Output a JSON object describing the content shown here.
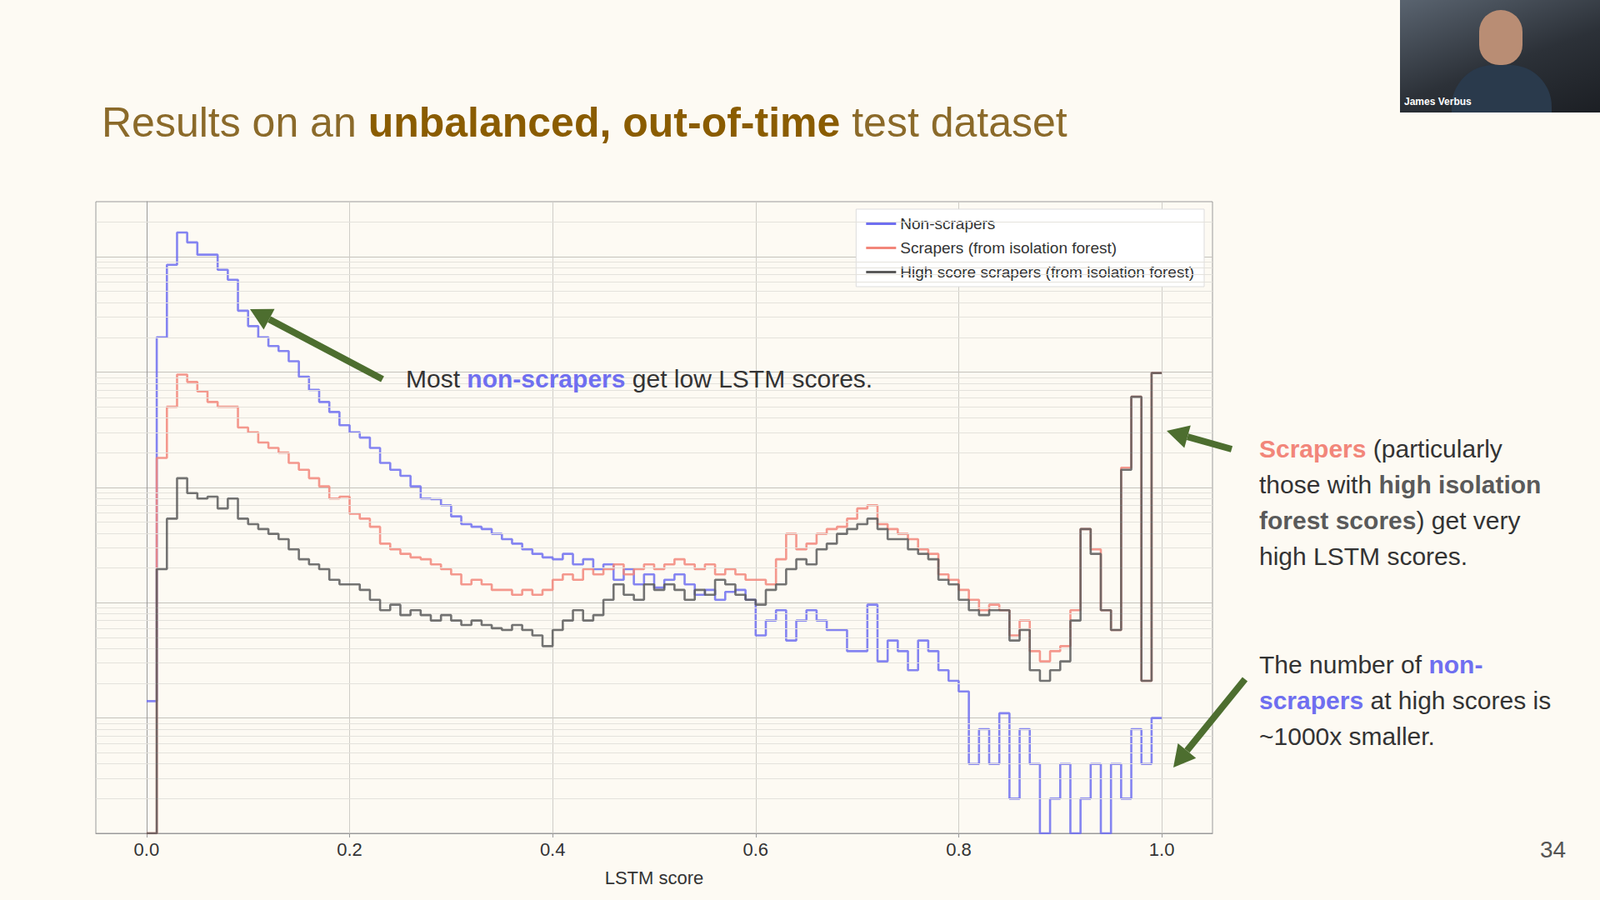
{
  "chart_data": {
    "type": "histogram",
    "title": [
      {
        "text": "Results on an "
      },
      {
        "text": "unbalanced, out-of-time",
        "bold": true
      },
      {
        "text": " test dataset"
      }
    ],
    "x_label": "LSTM score",
    "bins": [
      0,
      0.01,
      0.02,
      0.03,
      0.04,
      0.05,
      0.06,
      0.07,
      0.08,
      0.09,
      0.1,
      0.11,
      0.12,
      0.13,
      0.14,
      0.15,
      0.16,
      0.17,
      0.18,
      0.19,
      0.2,
      0.21,
      0.22,
      0.23,
      0.24,
      0.25,
      0.26,
      0.27,
      0.28,
      0.29,
      0.3,
      0.31,
      0.32,
      0.33,
      0.34,
      0.35,
      0.36,
      0.37,
      0.38,
      0.39,
      0.4,
      0.41,
      0.42,
      0.43,
      0.44,
      0.45,
      0.46,
      0.47,
      0.48,
      0.49,
      0.5,
      0.51,
      0.52,
      0.53,
      0.54,
      0.55,
      0.56,
      0.57,
      0.58,
      0.59,
      0.6,
      0.61,
      0.62,
      0.63,
      0.64,
      0.65,
      0.66,
      0.67,
      0.68,
      0.69,
      0.7,
      0.71,
      0.72,
      0.73,
      0.74,
      0.75,
      0.76,
      0.77,
      0.78,
      0.79,
      0.8,
      0.81,
      0.82,
      0.83,
      0.84,
      0.85,
      0.86,
      0.87,
      0.88,
      0.89,
      0.9,
      0.91,
      0.92,
      0.93,
      0.94,
      0.95,
      0.96,
      0.97,
      0.98,
      0.99,
      1.0
    ],
    "series": [
      {
        "name": "Non-scrapers",
        "color": "#6f6ff0",
        "values": [
          14,
          20000,
          85000,
          162000,
          133000,
          104000,
          104000,
          77000,
          63000,
          34000,
          25000,
          20000,
          16800,
          15200,
          12400,
          9100,
          7000,
          5500,
          4500,
          3460,
          3000,
          2700,
          2200,
          1630,
          1420,
          1260,
          1020,
          800,
          790,
          700,
          560,
          480,
          455,
          435,
          395,
          355,
          325,
          290,
          265,
          247,
          238,
          265,
          215,
          238,
          195,
          215,
          158,
          195,
          144,
          176,
          135,
          158,
          176,
          144,
          117,
          129,
          106,
          124,
          129,
          106,
          52,
          70,
          86,
          47,
          70,
          86,
          70,
          58,
          58,
          38,
          38,
          96,
          31,
          47,
          38,
          26,
          47,
          38,
          26,
          21,
          17,
          4,
          8,
          4,
          11,
          2,
          8,
          4,
          1,
          2,
          4,
          1,
          2,
          4,
          1,
          4,
          2,
          8,
          4,
          10
        ]
      },
      {
        "name": "Scrapers (from isolation forest)",
        "color": "#f2867a",
        "values": [
          1,
          1800,
          5000,
          9500,
          8200,
          6800,
          5500,
          5000,
          5000,
          3300,
          3000,
          2450,
          2200,
          2000,
          1630,
          1420,
          1200,
          1020,
          800,
          830,
          590,
          535,
          455,
          325,
          290,
          265,
          247,
          238,
          215,
          195,
          176,
          144,
          158,
          144,
          129,
          129,
          117,
          129,
          117,
          129,
          158,
          176,
          158,
          195,
          176,
          195,
          215,
          176,
          195,
          215,
          195,
          215,
          238,
          215,
          195,
          215,
          176,
          195,
          176,
          158,
          158,
          144,
          238,
          395,
          290,
          325,
          395,
          435,
          455,
          535,
          656,
          700,
          480,
          435,
          395,
          355,
          290,
          265,
          176,
          158,
          129,
          106,
          86,
          96,
          86,
          52,
          70,
          38,
          31,
          38,
          42,
          86,
          435,
          290,
          86,
          58,
          1480,
          6100,
          21,
          9800
        ]
      },
      {
        "name": "High score scrapers (from isolation forest)",
        "color": "#5a5a5a",
        "values": [
          1,
          195,
          535,
          1200,
          890,
          800,
          830,
          656,
          800,
          535,
          480,
          435,
          395,
          355,
          290,
          238,
          215,
          195,
          158,
          144,
          144,
          129,
          106,
          86,
          96,
          78,
          86,
          78,
          70,
          78,
          70,
          64,
          70,
          64,
          60,
          58,
          64,
          58,
          52,
          42,
          58,
          70,
          86,
          70,
          78,
          106,
          144,
          117,
          106,
          144,
          129,
          144,
          129,
          106,
          129,
          117,
          158,
          144,
          117,
          106,
          96,
          129,
          144,
          195,
          238,
          215,
          290,
          325,
          395,
          435,
          480,
          535,
          435,
          355,
          355,
          290,
          265,
          238,
          158,
          144,
          106,
          86,
          78,
          86,
          86,
          47,
          58,
          26,
          21,
          26,
          31,
          70,
          435,
          265,
          86,
          58,
          1420,
          6100,
          21,
          9800
        ]
      }
    ],
    "xlim": [
      -0.05,
      1.05
    ],
    "xticks": [
      {
        "value": 0,
        "label": "0.0"
      },
      0.2,
      0.4,
      0.6,
      0.8,
      {
        "value": 1,
        "label": "1.0"
      }
    ],
    "ylim": [
      1,
      300000
    ],
    "yticks": [
      1,
      10,
      100,
      1000,
      10000,
      100000
    ],
    "log": "y",
    "grid": true,
    "legend": "top-right",
    "tick_labels": "x",
    "line_style": "step",
    "annotations": [
      {
        "parts": [
          {
            "text": "Most "
          },
          {
            "text": "non-scrapers",
            "series": "Non-scrapers"
          },
          {
            "text": " get low LSTM scores."
          }
        ]
      },
      {
        "parts": [
          {
            "text": "Scrapers",
            "series": "Scrapers (from isolation forest)"
          },
          {
            "text": " (particularly those with "
          },
          {
            "text": "high isolation forest scores",
            "series": "High score scrapers (from isolation forest)"
          },
          {
            "text": ") get very high LSTM scores."
          }
        ]
      },
      {
        "parts": [
          {
            "text": "The number of "
          },
          {
            "text": "non-scrapers",
            "series": "Non-scrapers"
          },
          {
            "text": " at high scores is ~1000x smaller."
          }
        ]
      }
    ]
  },
  "slide": {
    "page_number": 34,
    "speaker": "James Verbus"
  }
}
